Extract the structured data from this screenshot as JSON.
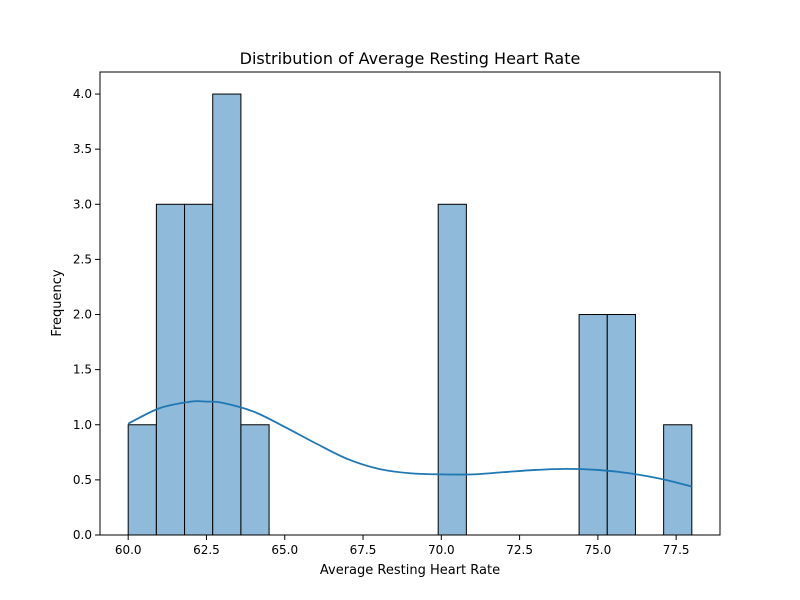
{
  "chart_data": {
    "type": "bar",
    "subtype": "histogram-with-kde",
    "title": "Distribution of Average Resting Heart Rate",
    "xlabel": "Average Resting Heart Rate",
    "ylabel": "Frequency",
    "xlim": [
      59.1,
      78.9
    ],
    "ylim": [
      0,
      4.2
    ],
    "xticks": [
      60.0,
      62.5,
      65.0,
      67.5,
      70.0,
      72.5,
      75.0,
      77.5
    ],
    "xtick_labels": [
      "60.0",
      "62.5",
      "65.0",
      "67.5",
      "70.0",
      "72.5",
      "75.0",
      "77.5"
    ],
    "yticks": [
      0.0,
      0.5,
      1.0,
      1.5,
      2.0,
      2.5,
      3.0,
      3.5,
      4.0
    ],
    "ytick_labels": [
      "0.0",
      "0.5",
      "1.0",
      "1.5",
      "2.0",
      "2.5",
      "3.0",
      "3.5",
      "4.0"
    ],
    "grid": false,
    "bars": [
      {
        "x0": 60.0,
        "x1": 60.9,
        "value": 1
      },
      {
        "x0": 60.9,
        "x1": 61.8,
        "value": 3
      },
      {
        "x0": 61.8,
        "x1": 62.7,
        "value": 3
      },
      {
        "x0": 62.7,
        "x1": 63.6,
        "value": 4
      },
      {
        "x0": 63.6,
        "x1": 64.5,
        "value": 1
      },
      {
        "x0": 69.9,
        "x1": 70.8,
        "value": 3
      },
      {
        "x0": 74.4,
        "x1": 75.3,
        "value": 2
      },
      {
        "x0": 75.3,
        "x1": 76.2,
        "value": 2
      },
      {
        "x0": 77.1,
        "x1": 78.0,
        "value": 1
      }
    ],
    "kde": {
      "x": [
        60.0,
        61.0,
        62.0,
        62.5,
        63.0,
        64.0,
        65.0,
        66.0,
        67.0,
        68.0,
        69.0,
        70.0,
        71.0,
        72.0,
        73.0,
        74.0,
        75.0,
        76.0,
        77.0,
        78.0
      ],
      "y": [
        1.01,
        1.15,
        1.21,
        1.21,
        1.2,
        1.12,
        0.98,
        0.83,
        0.69,
        0.6,
        0.56,
        0.55,
        0.55,
        0.57,
        0.59,
        0.6,
        0.59,
        0.56,
        0.51,
        0.44
      ]
    },
    "colors": {
      "bar_fill": "#8fbad9",
      "bar_edge": "#000000",
      "kde_line": "#1f77b4"
    }
  }
}
